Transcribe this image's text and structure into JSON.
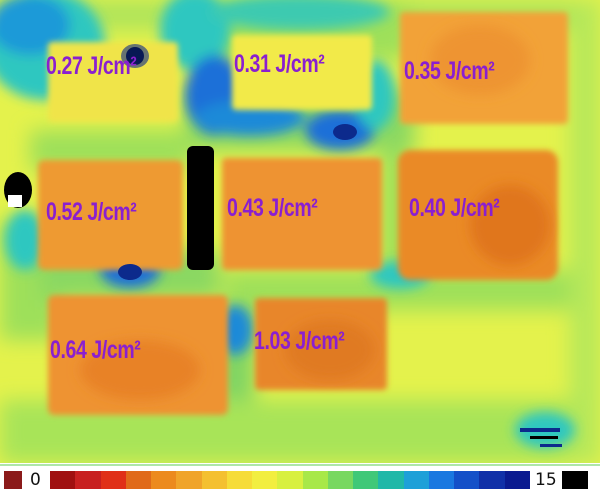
{
  "dose_labels": {
    "a": "0.27 J/cm²",
    "b": "0.31 J/cm²",
    "c": "0.35 J/cm²",
    "d": "0.52 J/cm²",
    "e": "0.43 J/cm²",
    "f": "0.40 J/cm²",
    "g": "0.64 J/cm²",
    "h": "1.03 J/cm²"
  },
  "color_scale": {
    "min_label": "0",
    "max_label": "15",
    "colors": [
      "#a01010",
      "#c82020",
      "#e03018",
      "#e06a1a",
      "#ec8a1e",
      "#f0a42a",
      "#f4c030",
      "#f6dc38",
      "#f2ee40",
      "#d8f040",
      "#a8e848",
      "#78d860",
      "#40c878",
      "#20b8a8",
      "#1ea0d8",
      "#1a78e0",
      "#1450c8",
      "#1030a8",
      "#0a1a90"
    ],
    "start_color": "#8b1a1a",
    "end_color": "#000000"
  },
  "palette": {
    "field": "#e4f24c",
    "field_green": "#9ee05a",
    "orange_light": "#f2a238",
    "orange": "#ee9330",
    "orange_dark": "#e0761e",
    "yellow": "#f2ea4a",
    "cyan": "#2ec7c0",
    "blue": "#1d70d8",
    "navy": "#0c2a8c",
    "black": "#000000",
    "label": "#8a1fd0"
  }
}
